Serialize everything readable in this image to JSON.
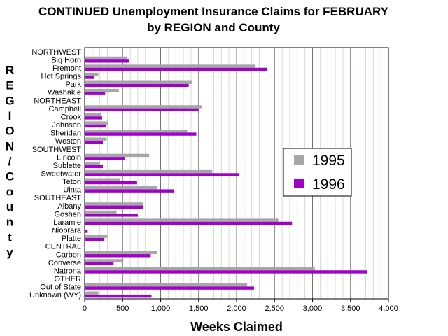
{
  "chart_data": {
    "type": "bar",
    "orientation": "horizontal",
    "title": "CONTINUED Unemployment Insurance Claims for FEBRUARY",
    "subtitle": "by REGION and County",
    "xlabel": "Weeks Claimed",
    "ylabel": "REGION/County",
    "xlim": [
      0,
      4000
    ],
    "xticks": [
      "0",
      "500",
      "1,000",
      "1,500",
      "2,000",
      "2,500",
      "3,000",
      "3,500",
      "4,000"
    ],
    "grid": true,
    "legend_position": "right",
    "categories": [
      "NORTHWEST",
      "Big Horn",
      "Fremont",
      "Hot Springs",
      "Park",
      "Washakie",
      "NORTHEAST",
      "Campbell",
      "Crook",
      "Johnson",
      "Sheridan",
      "Weston",
      "SOUTHWEST",
      "Lincoln",
      "Sublette",
      "Sweetwater",
      "Teton",
      "Uinta",
      "SOUTHEAST",
      "Albany",
      "Goshen",
      "Laramie",
      "Niobrara",
      "Platte",
      "CENTRAL",
      "Carbon",
      "Converse",
      "Natrona",
      "OTHER",
      "Out of State",
      "Unknown (WY)"
    ],
    "series": [
      {
        "name": "1995",
        "color": "#a6a6a6",
        "values": [
          0,
          560,
          2250,
          180,
          1420,
          450,
          0,
          1540,
          220,
          310,
          1350,
          290,
          0,
          850,
          200,
          1680,
          470,
          960,
          0,
          770,
          420,
          2550,
          10,
          300,
          0,
          950,
          490,
          3030,
          0,
          2140,
          180
        ]
      },
      {
        "name": "1996",
        "color": "#a000c8",
        "values": [
          0,
          590,
          2400,
          120,
          1370,
          270,
          0,
          1500,
          230,
          280,
          1470,
          240,
          0,
          530,
          240,
          2030,
          690,
          1180,
          0,
          770,
          700,
          2730,
          40,
          260,
          0,
          870,
          380,
          3720,
          0,
          2230,
          880
        ]
      }
    ]
  }
}
